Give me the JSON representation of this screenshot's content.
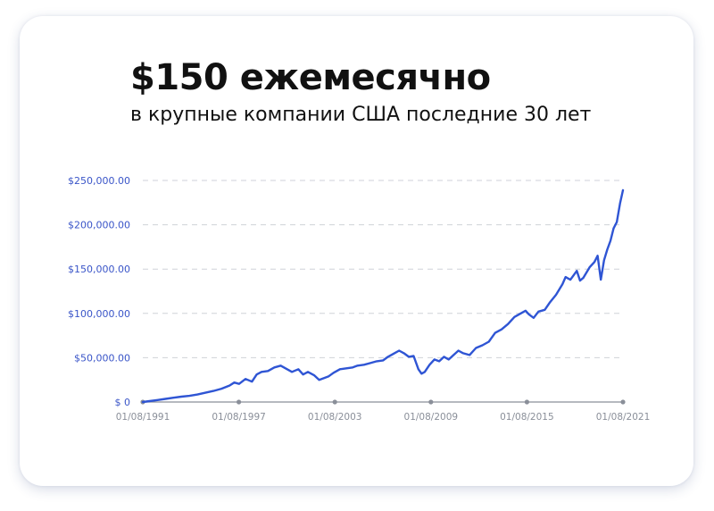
{
  "header": {
    "title": "$150 ежемесячно",
    "subtitle": "в крупные компании США последние 30 лет"
  },
  "chart_data": {
    "type": "line",
    "title": "$150 ежемесячно",
    "subtitle": "в крупные компании США последние 30 лет",
    "xlabel": "",
    "ylabel": "",
    "x_range": [
      1991.583,
      2021.583
    ],
    "ylim": [
      0,
      250000
    ],
    "grid": true,
    "legend": "none",
    "colors": {
      "line": "#2f55d4",
      "tick_text_y": "#3a55c8",
      "tick_text_x": "#8a8f99",
      "grid": "#cfd2d8",
      "axis": "#8a8f99"
    },
    "y_ticks": [
      {
        "value": 0,
        "label": "$ 0"
      },
      {
        "value": 50000,
        "label": "$50,000.00"
      },
      {
        "value": 100000,
        "label": "$100,000.00"
      },
      {
        "value": 150000,
        "label": "$150,000.00"
      },
      {
        "value": 200000,
        "label": "$200,000.00"
      },
      {
        "value": 250000,
        "label": "$250,000.00"
      }
    ],
    "x_ticks": [
      {
        "value": 1991.583,
        "label": "01/08/1991"
      },
      {
        "value": 1997.583,
        "label": "01/08/1997"
      },
      {
        "value": 2003.583,
        "label": "01/08/2003"
      },
      {
        "value": 2009.583,
        "label": "01/08/2009"
      },
      {
        "value": 2015.583,
        "label": "01/08/2015"
      },
      {
        "value": 2021.583,
        "label": "01/08/2021"
      }
    ],
    "series": [
      {
        "x": [
          1991.583,
          1992.0,
          1992.5,
          1993.0,
          1993.5,
          1994.0,
          1994.5,
          1995.0,
          1995.5,
          1996.0,
          1996.5,
          1997.0,
          1997.3,
          1997.6,
          1998.0,
          1998.4,
          1998.7,
          1999.0,
          1999.4,
          1999.8,
          2000.2,
          2000.6,
          2000.9,
          2001.3,
          2001.6,
          2001.9,
          2002.3,
          2002.6,
          2002.9,
          2003.2,
          2003.5,
          2003.9,
          2004.3,
          2004.7,
          2005.0,
          2005.4,
          2005.8,
          2006.2,
          2006.6,
          2006.9,
          2007.3,
          2007.6,
          2007.9,
          2008.2,
          2008.5,
          2008.8,
          2009.0,
          2009.2,
          2009.5,
          2009.8,
          2010.1,
          2010.4,
          2010.7,
          2011.0,
          2011.3,
          2011.6,
          2012.0,
          2012.4,
          2012.8,
          2013.2,
          2013.6,
          2014.0,
          2014.4,
          2014.8,
          2015.2,
          2015.5,
          2015.7,
          2016.0,
          2016.3,
          2016.7,
          2017.0,
          2017.4,
          2017.8,
          2018.0,
          2018.3,
          2018.7,
          2018.9,
          2019.1,
          2019.5,
          2019.8,
          2020.0,
          2020.2,
          2020.4,
          2020.6,
          2020.8,
          2021.0,
          2021.2,
          2021.4,
          2021.583
        ],
        "y": [
          0,
          1000,
          2200,
          3500,
          4800,
          6000,
          7000,
          8500,
          10500,
          12500,
          15000,
          18500,
          22000,
          20500,
          26000,
          23000,
          31000,
          34000,
          35000,
          39000,
          41000,
          37000,
          34000,
          37000,
          31000,
          34000,
          30000,
          25000,
          27000,
          29000,
          33000,
          37000,
          38000,
          39000,
          41000,
          42000,
          44000,
          46000,
          47000,
          51000,
          55000,
          58000,
          55000,
          51000,
          52000,
          37000,
          32000,
          34000,
          42000,
          48000,
          46000,
          51000,
          48000,
          53000,
          58000,
          55000,
          53000,
          61000,
          64000,
          68000,
          78000,
          82000,
          88000,
          96000,
          100000,
          103000,
          99000,
          95000,
          102000,
          104000,
          112000,
          121000,
          133000,
          141000,
          138000,
          148000,
          137000,
          140000,
          152000,
          158000,
          165000,
          138000,
          160000,
          172000,
          182000,
          196000,
          203000,
          224000,
          239000
        ]
      }
    ]
  }
}
